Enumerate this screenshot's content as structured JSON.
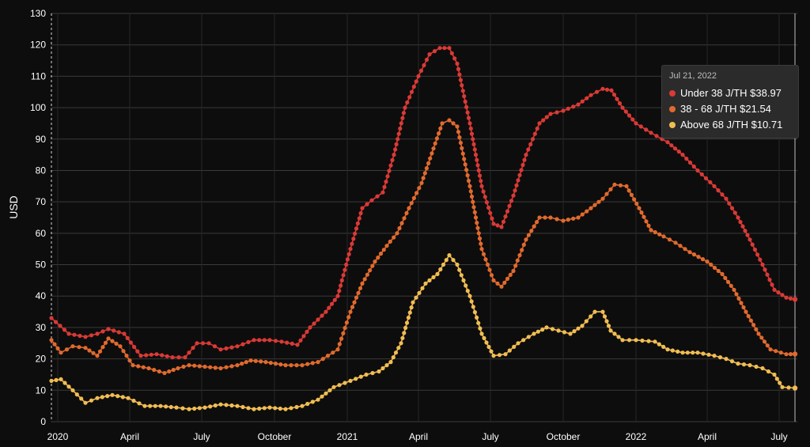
{
  "chart_data": {
    "type": "line",
    "title": "",
    "xlabel": "",
    "ylabel": "USD",
    "ylim": [
      0,
      130
    ],
    "yticks": [
      0,
      10,
      20,
      30,
      40,
      50,
      60,
      70,
      80,
      90,
      100,
      110,
      120,
      130
    ],
    "xlim": [
      "2019-12-23",
      "2022-07-24"
    ],
    "xticks": [
      {
        "date": "2020-01-01",
        "label": "2020"
      },
      {
        "date": "2020-04-01",
        "label": "April"
      },
      {
        "date": "2020-07-01",
        "label": "July"
      },
      {
        "date": "2020-10-01",
        "label": "October"
      },
      {
        "date": "2021-01-01",
        "label": "2021"
      },
      {
        "date": "2021-04-01",
        "label": "April"
      },
      {
        "date": "2021-07-01",
        "label": "July"
      },
      {
        "date": "2021-10-01",
        "label": "October"
      },
      {
        "date": "2022-01-01",
        "label": "2022"
      },
      {
        "date": "2022-04-01",
        "label": "April"
      },
      {
        "date": "2022-07-01",
        "label": "July"
      }
    ],
    "grid": true,
    "series": [
      {
        "name": "Under 38 J/TH",
        "color": "#d93a36",
        "points": [
          [
            "2019-12-24",
            33
          ],
          [
            "2020-01-15",
            28
          ],
          [
            "2020-02-05",
            27
          ],
          [
            "2020-02-20",
            28
          ],
          [
            "2020-03-05",
            29.5
          ],
          [
            "2020-03-25",
            28
          ],
          [
            "2020-04-15",
            21
          ],
          [
            "2020-05-05",
            21.5
          ],
          [
            "2020-05-25",
            20.5
          ],
          [
            "2020-06-10",
            20.5
          ],
          [
            "2020-06-25",
            25
          ],
          [
            "2020-07-10",
            25
          ],
          [
            "2020-07-25",
            23
          ],
          [
            "2020-08-15",
            24
          ],
          [
            "2020-09-05",
            26
          ],
          [
            "2020-09-25",
            26
          ],
          [
            "2020-10-10",
            25.5
          ],
          [
            "2020-10-30",
            24.5
          ],
          [
            "2020-11-15",
            30
          ],
          [
            "2020-12-05",
            35
          ],
          [
            "2020-12-20",
            40
          ],
          [
            "2021-01-05",
            55
          ],
          [
            "2021-01-20",
            68
          ],
          [
            "2021-02-01",
            70.5
          ],
          [
            "2021-02-15",
            73
          ],
          [
            "2021-03-01",
            85
          ],
          [
            "2021-03-15",
            100
          ],
          [
            "2021-04-01",
            110
          ],
          [
            "2021-04-15",
            117
          ],
          [
            "2021-04-28",
            119
          ],
          [
            "2021-05-10",
            119
          ],
          [
            "2021-05-20",
            114
          ],
          [
            "2021-06-05",
            95
          ],
          [
            "2021-06-20",
            75
          ],
          [
            "2021-07-05",
            63
          ],
          [
            "2021-07-15",
            62
          ],
          [
            "2021-07-30",
            72
          ],
          [
            "2021-08-15",
            85
          ],
          [
            "2021-09-01",
            95
          ],
          [
            "2021-09-15",
            98
          ],
          [
            "2021-10-01",
            99
          ],
          [
            "2021-10-20",
            101
          ],
          [
            "2021-11-05",
            104
          ],
          [
            "2021-11-20",
            106
          ],
          [
            "2021-12-01",
            105.5
          ],
          [
            "2021-12-15",
            100
          ],
          [
            "2022-01-01",
            95
          ],
          [
            "2022-01-20",
            92
          ],
          [
            "2022-02-10",
            89
          ],
          [
            "2022-03-01",
            85
          ],
          [
            "2022-03-20",
            80
          ],
          [
            "2022-04-10",
            75
          ],
          [
            "2022-04-25",
            71
          ],
          [
            "2022-05-10",
            65
          ],
          [
            "2022-05-25",
            58
          ],
          [
            "2022-06-10",
            50
          ],
          [
            "2022-06-25",
            42
          ],
          [
            "2022-07-10",
            39.5
          ],
          [
            "2022-07-21",
            38.97
          ]
        ]
      },
      {
        "name": "38 - 68 J/TH",
        "color": "#e06a2e",
        "points": [
          [
            "2019-12-24",
            26
          ],
          [
            "2020-01-05",
            22
          ],
          [
            "2020-01-20",
            24
          ],
          [
            "2020-02-05",
            23.5
          ],
          [
            "2020-02-20",
            21
          ],
          [
            "2020-03-05",
            26.5
          ],
          [
            "2020-03-20",
            24
          ],
          [
            "2020-04-05",
            18
          ],
          [
            "2020-04-25",
            17
          ],
          [
            "2020-05-15",
            15.5
          ],
          [
            "2020-06-01",
            17
          ],
          [
            "2020-06-15",
            18
          ],
          [
            "2020-07-05",
            17.5
          ],
          [
            "2020-07-25",
            17
          ],
          [
            "2020-08-15",
            18
          ],
          [
            "2020-09-01",
            19.5
          ],
          [
            "2020-09-20",
            19
          ],
          [
            "2020-10-15",
            18
          ],
          [
            "2020-11-05",
            18
          ],
          [
            "2020-11-25",
            19
          ],
          [
            "2020-12-20",
            23
          ],
          [
            "2021-01-05",
            35
          ],
          [
            "2021-01-20",
            44
          ],
          [
            "2021-02-05",
            51
          ],
          [
            "2021-02-20",
            56
          ],
          [
            "2021-03-05",
            60
          ],
          [
            "2021-03-20",
            68
          ],
          [
            "2021-04-05",
            76
          ],
          [
            "2021-04-20",
            87
          ],
          [
            "2021-05-01",
            95
          ],
          [
            "2021-05-10",
            96
          ],
          [
            "2021-05-20",
            94
          ],
          [
            "2021-06-05",
            75
          ],
          [
            "2021-06-20",
            55
          ],
          [
            "2021-07-05",
            45
          ],
          [
            "2021-07-15",
            43
          ],
          [
            "2021-07-30",
            48
          ],
          [
            "2021-08-15",
            58
          ],
          [
            "2021-09-01",
            65
          ],
          [
            "2021-09-15",
            65
          ],
          [
            "2021-10-01",
            64
          ],
          [
            "2021-10-20",
            65
          ],
          [
            "2021-11-05",
            68
          ],
          [
            "2021-11-20",
            71
          ],
          [
            "2021-12-05",
            75.5
          ],
          [
            "2021-12-20",
            75
          ],
          [
            "2022-01-05",
            68
          ],
          [
            "2022-01-20",
            61
          ],
          [
            "2022-02-05",
            59
          ],
          [
            "2022-02-20",
            57
          ],
          [
            "2022-03-10",
            54
          ],
          [
            "2022-04-01",
            51
          ],
          [
            "2022-04-20",
            47
          ],
          [
            "2022-05-05",
            42
          ],
          [
            "2022-05-20",
            35
          ],
          [
            "2022-06-05",
            28
          ],
          [
            "2022-06-20",
            23
          ],
          [
            "2022-07-10",
            21.5
          ],
          [
            "2022-07-21",
            21.54
          ]
        ]
      },
      {
        "name": "Above 68 J/TH",
        "color": "#f1bd52",
        "points": [
          [
            "2019-12-24",
            13
          ],
          [
            "2020-01-05",
            13.5
          ],
          [
            "2020-01-20",
            10
          ],
          [
            "2020-02-05",
            6
          ],
          [
            "2020-02-20",
            7.5
          ],
          [
            "2020-03-10",
            8.5
          ],
          [
            "2020-03-30",
            7.5
          ],
          [
            "2020-04-20",
            5
          ],
          [
            "2020-05-10",
            5
          ],
          [
            "2020-05-30",
            4.5
          ],
          [
            "2020-06-15",
            4
          ],
          [
            "2020-07-05",
            4.5
          ],
          [
            "2020-07-25",
            5.5
          ],
          [
            "2020-08-15",
            5
          ],
          [
            "2020-09-05",
            4
          ],
          [
            "2020-09-25",
            4.5
          ],
          [
            "2020-10-15",
            4
          ],
          [
            "2020-11-05",
            5
          ],
          [
            "2020-11-25",
            7
          ],
          [
            "2020-12-15",
            11
          ],
          [
            "2021-01-05",
            13
          ],
          [
            "2021-01-25",
            15
          ],
          [
            "2021-02-10",
            16
          ],
          [
            "2021-02-25",
            19
          ],
          [
            "2021-03-10",
            25
          ],
          [
            "2021-03-25",
            38
          ],
          [
            "2021-04-10",
            44
          ],
          [
            "2021-04-25",
            47
          ],
          [
            "2021-05-10",
            53
          ],
          [
            "2021-05-20",
            50
          ],
          [
            "2021-06-05",
            40
          ],
          [
            "2021-06-20",
            28
          ],
          [
            "2021-07-05",
            21
          ],
          [
            "2021-07-20",
            21.5
          ],
          [
            "2021-08-05",
            25
          ],
          [
            "2021-08-25",
            28
          ],
          [
            "2021-09-10",
            30
          ],
          [
            "2021-09-25",
            29
          ],
          [
            "2021-10-10",
            28
          ],
          [
            "2021-10-25",
            30.5
          ],
          [
            "2021-11-10",
            35
          ],
          [
            "2021-11-20",
            35
          ],
          [
            "2021-11-30",
            29
          ],
          [
            "2021-12-15",
            26
          ],
          [
            "2022-01-01",
            26
          ],
          [
            "2022-01-25",
            25.5
          ],
          [
            "2022-02-10",
            23
          ],
          [
            "2022-03-01",
            22
          ],
          [
            "2022-03-20",
            22
          ],
          [
            "2022-04-10",
            21
          ],
          [
            "2022-04-25",
            20
          ],
          [
            "2022-05-10",
            18.5
          ],
          [
            "2022-05-25",
            18
          ],
          [
            "2022-06-10",
            17
          ],
          [
            "2022-06-25",
            15
          ],
          [
            "2022-07-05",
            11
          ],
          [
            "2022-07-21",
            10.71
          ]
        ]
      }
    ]
  },
  "tooltip": {
    "date": "Jul 21, 2022",
    "rows": [
      {
        "label": "Under 38 J/TH $38.97",
        "color": "#d93a36"
      },
      {
        "label": "38 - 68 J/TH $21.54",
        "color": "#e06a2e"
      },
      {
        "label": "Above 68 J/TH $10.71",
        "color": "#f1bd52"
      }
    ]
  }
}
